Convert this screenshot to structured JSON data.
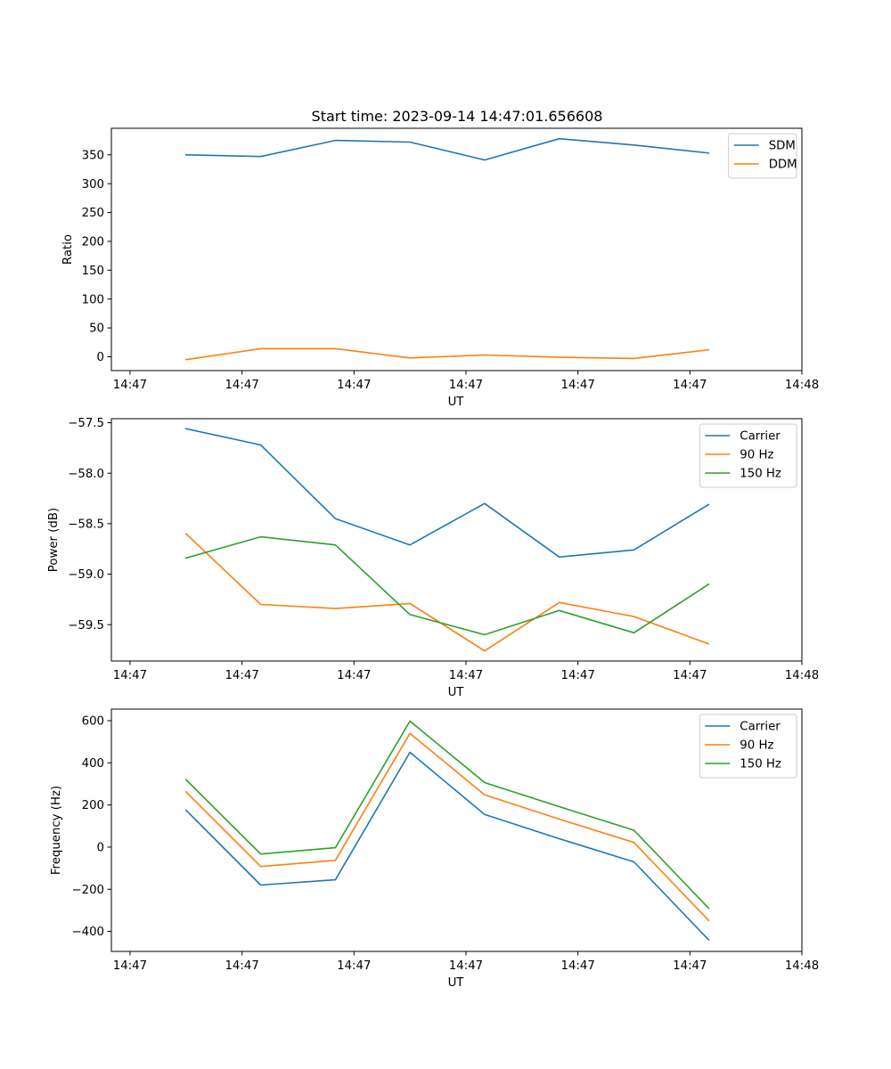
{
  "figure_title": "Start time: 2023-09-14 14:47:01.656608",
  "chart_data": [
    {
      "type": "line",
      "title": "Start time: 2023-09-14 14:47:01.656608",
      "xlabel": "UT",
      "ylabel": "Ratio",
      "x": [
        1,
        2,
        3,
        4,
        5,
        6,
        7,
        8
      ],
      "x_ticks": [
        0.25,
        1.75,
        3.25,
        4.75,
        6.25,
        7.75,
        9.25
      ],
      "x_tick_labels": [
        "14:47",
        "14:47",
        "14:47",
        "14:47",
        "14:47",
        "14:47",
        "14:48"
      ],
      "xlim": [
        0.0,
        9.25
      ],
      "ylim": [
        -24,
        396
      ],
      "y_ticks": [
        0,
        50,
        100,
        150,
        200,
        250,
        300,
        350
      ],
      "legend": "upper right",
      "series": [
        {
          "name": "SDM",
          "color": "#1f77b4",
          "values": [
            350,
            347,
            375,
            372,
            341,
            378,
            367,
            353
          ]
        },
        {
          "name": "DDM",
          "color": "#ff7f0e",
          "values": [
            -5,
            14,
            14,
            -2,
            3,
            -1,
            -3,
            12
          ]
        }
      ]
    },
    {
      "type": "line",
      "title": "",
      "xlabel": "UT",
      "ylabel": "Power (dB)",
      "x": [
        1,
        2,
        3,
        4,
        5,
        6,
        7,
        8
      ],
      "x_ticks": [
        0.25,
        1.75,
        3.25,
        4.75,
        6.25,
        7.75,
        9.25
      ],
      "x_tick_labels": [
        "14:47",
        "14:47",
        "14:47",
        "14:47",
        "14:47",
        "14:47",
        "14:48"
      ],
      "xlim": [
        0.0,
        9.25
      ],
      "ylim": [
        -59.86,
        -57.46
      ],
      "y_ticks": [
        -59.5,
        -59.0,
        -58.5,
        -58.0,
        -57.5
      ],
      "y_tick_labels": [
        "−59.5",
        "−59.0",
        "−58.5",
        "−58.0",
        "−57.5"
      ],
      "legend": "upper right",
      "series": [
        {
          "name": "Carrier",
          "color": "#1f77b4",
          "values": [
            -57.56,
            -57.72,
            -58.45,
            -58.71,
            -58.3,
            -58.83,
            -58.76,
            -58.31
          ]
        },
        {
          "name": "90 Hz",
          "color": "#ff7f0e",
          "values": [
            -58.6,
            -59.3,
            -59.34,
            -59.29,
            -59.76,
            -59.28,
            -59.42,
            -59.69
          ]
        },
        {
          "name": "150 Hz",
          "color": "#2ca02c",
          "values": [
            -58.84,
            -58.63,
            -58.71,
            -59.4,
            -59.6,
            -59.36,
            -59.58,
            -59.1
          ]
        }
      ]
    },
    {
      "type": "line",
      "title": "",
      "xlabel": "UT",
      "ylabel": "Frequency (Hz)",
      "x": [
        1,
        2,
        3,
        4,
        5,
        6,
        7,
        8
      ],
      "x_ticks": [
        0.25,
        1.75,
        3.25,
        4.75,
        6.25,
        7.75,
        9.25
      ],
      "x_tick_labels": [
        "14:47",
        "14:47",
        "14:47",
        "14:47",
        "14:47",
        "14:47",
        "14:48"
      ],
      "xlim": [
        0.0,
        9.25
      ],
      "ylim": [
        -495,
        655
      ],
      "y_ticks": [
        -400,
        -200,
        0,
        200,
        400,
        600
      ],
      "y_tick_labels": [
        "−400",
        "−200",
        "0",
        "200",
        "400",
        "600"
      ],
      "legend": "upper right",
      "series": [
        {
          "name": "Carrier",
          "color": "#1f77b4",
          "values": [
            175,
            -180,
            -155,
            450,
            155,
            40,
            -70,
            -440
          ]
        },
        {
          "name": "90 Hz",
          "color": "#ff7f0e",
          "values": [
            262,
            -92,
            -63,
            540,
            248,
            133,
            22,
            -348
          ]
        },
        {
          "name": "150 Hz",
          "color": "#2ca02c",
          "values": [
            320,
            -33,
            -3,
            598,
            306,
            192,
            80,
            -290
          ]
        }
      ]
    }
  ]
}
